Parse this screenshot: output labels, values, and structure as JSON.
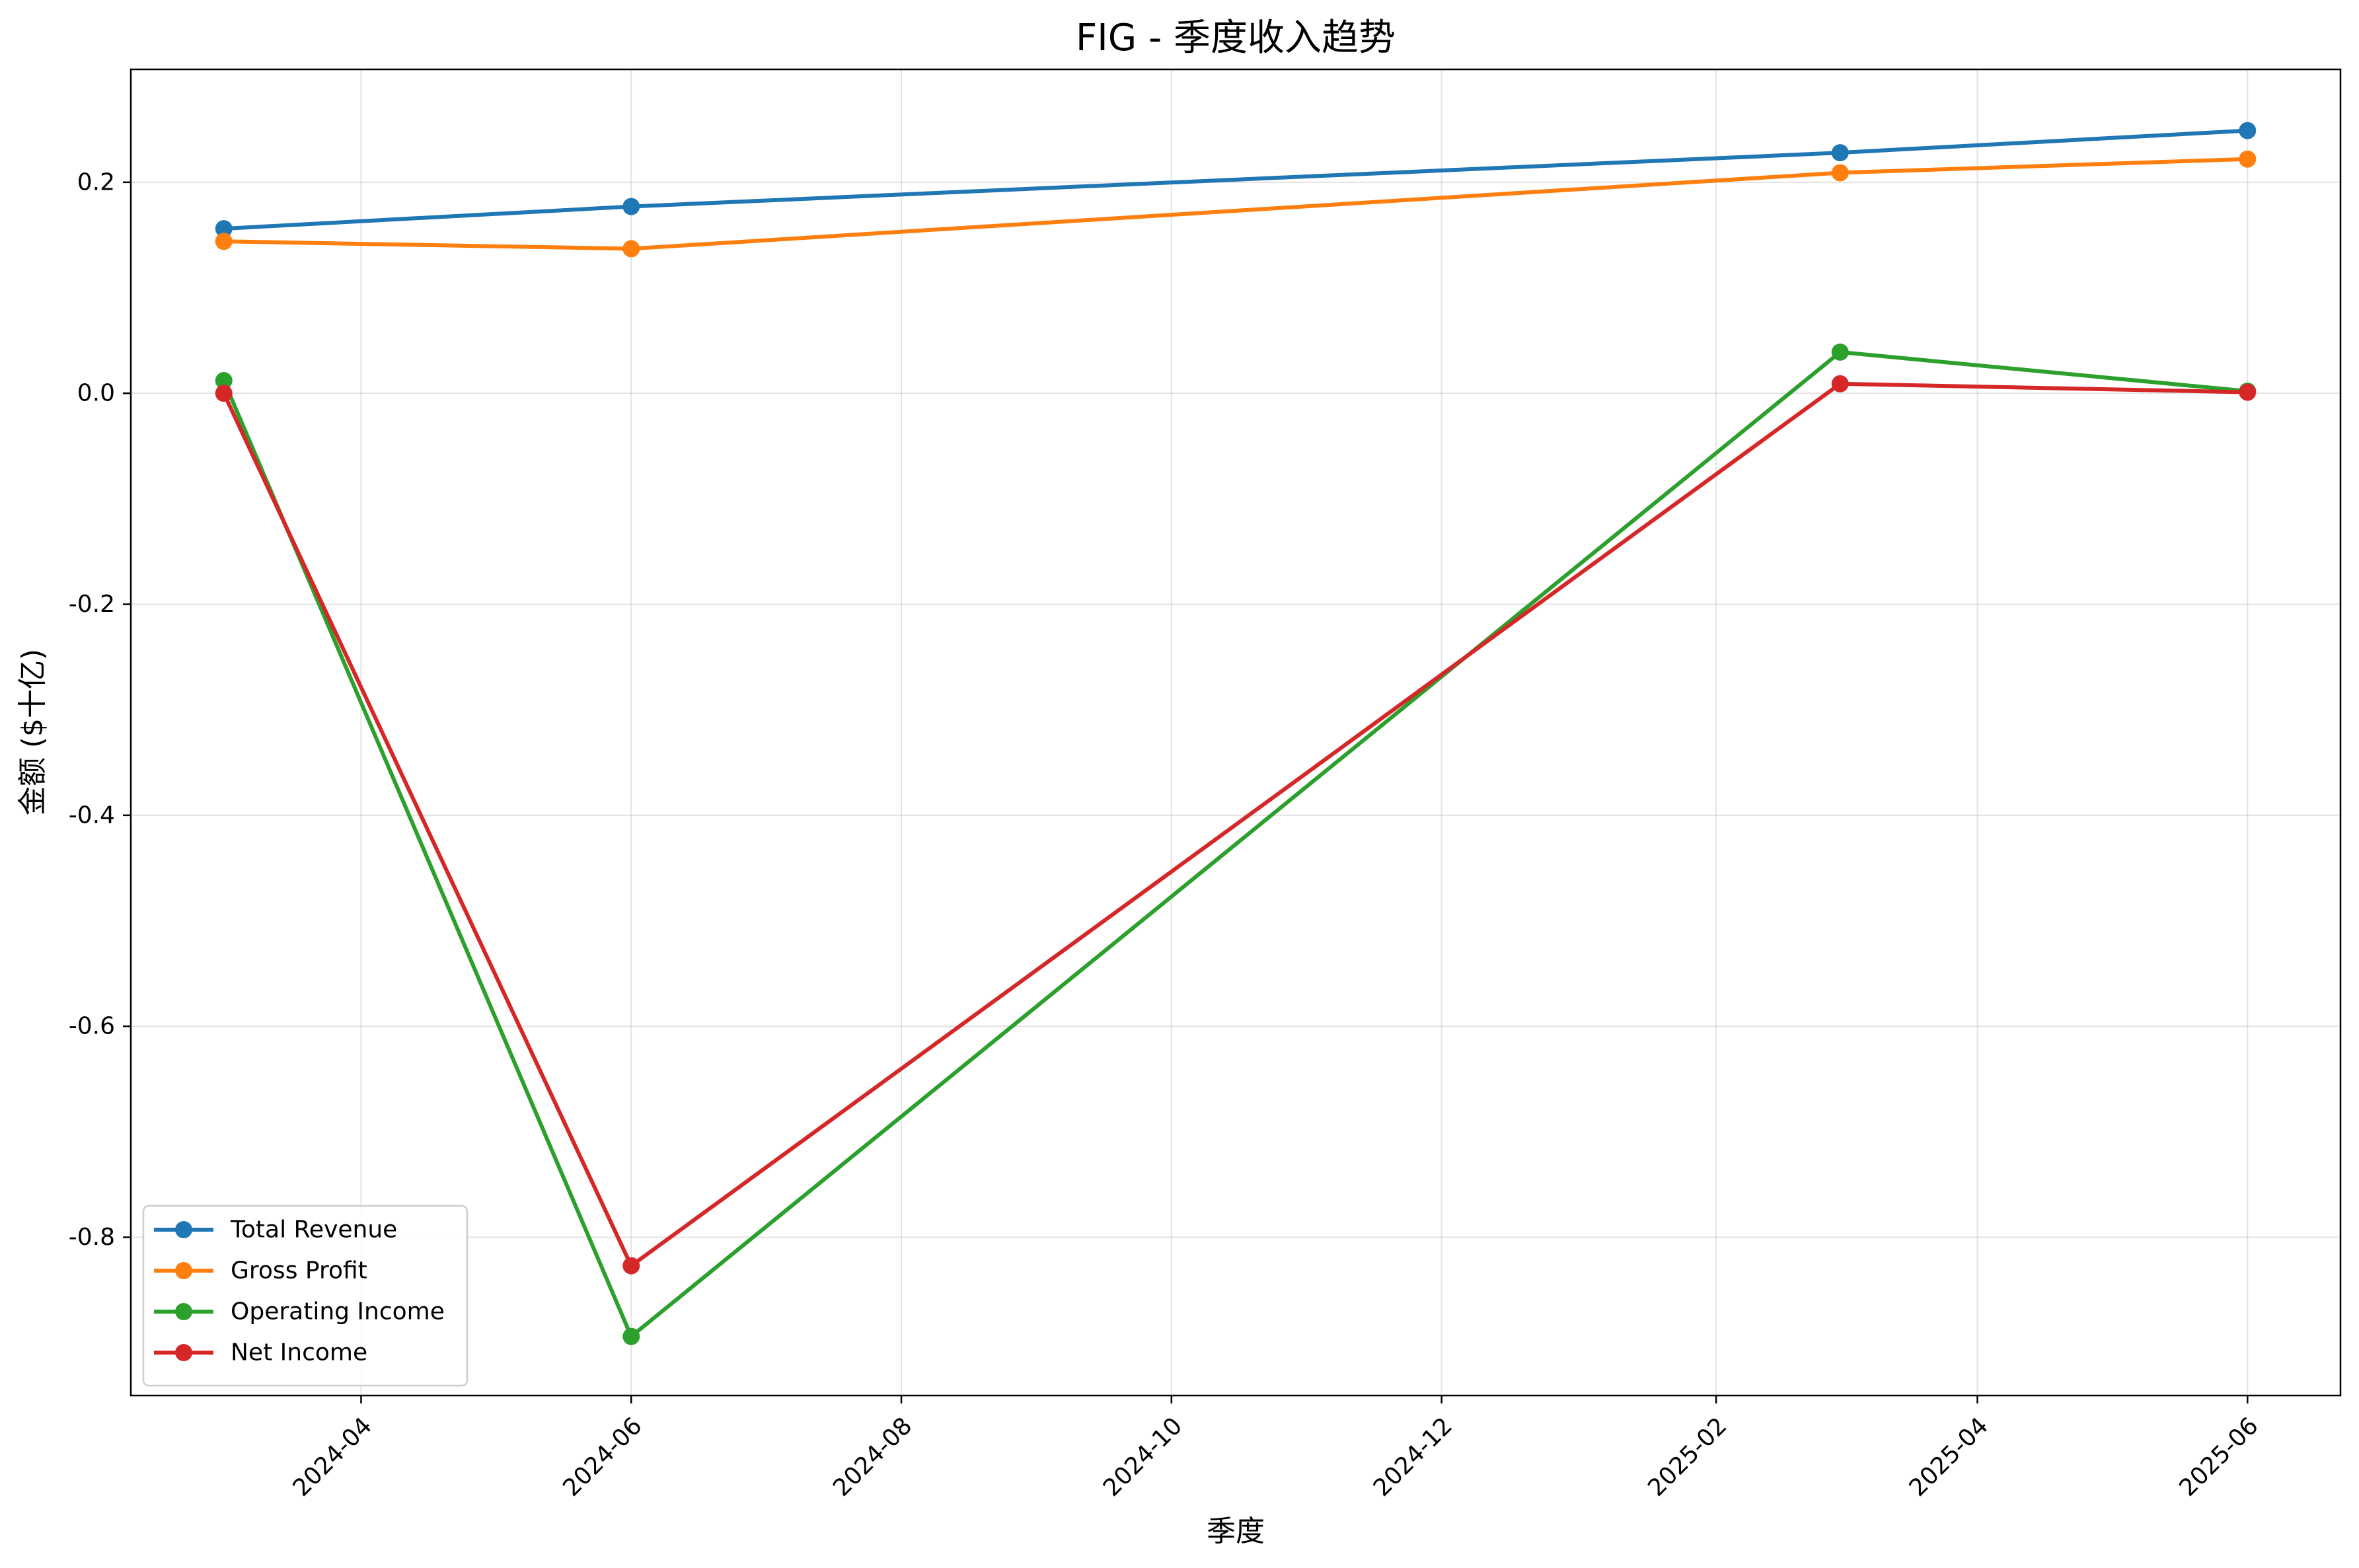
{
  "chart_data": {
    "type": "line",
    "title": "FIG - 季度收入趋势",
    "xlabel": "季度",
    "ylabel": "金额 ($十亿)",
    "x": [
      "2024-03-01",
      "2024-06-01",
      "2025-03-01",
      "2025-06-01"
    ],
    "x_ticks": [
      "2024-04",
      "2024-06",
      "2024-08",
      "2024-10",
      "2024-12",
      "2025-02",
      "2025-04",
      "2025-06"
    ],
    "y_ticks": [
      "0.2",
      "0.0",
      "-0.2",
      "-0.4",
      "-0.6",
      "-0.8"
    ],
    "xlim": [
      "2024-02-09",
      "2025-06-22"
    ],
    "ylim": [
      -0.95,
      0.307
    ],
    "grid": true,
    "legend_position": "lower-left",
    "series": [
      {
        "name": "Total Revenue",
        "color": "#1f77b4",
        "values": [
          0.156,
          0.177,
          0.228,
          0.249
        ]
      },
      {
        "name": "Gross Profit",
        "color": "#ff7f0e",
        "values": [
          0.144,
          0.137,
          0.209,
          0.222
        ]
      },
      {
        "name": "Operating Income",
        "color": "#2ca02c",
        "values": [
          0.012,
          -0.894,
          0.039,
          0.002
        ]
      },
      {
        "name": "Net Income",
        "color": "#d62728",
        "values": [
          0.0,
          -0.827,
          0.009,
          0.001
        ]
      }
    ]
  }
}
